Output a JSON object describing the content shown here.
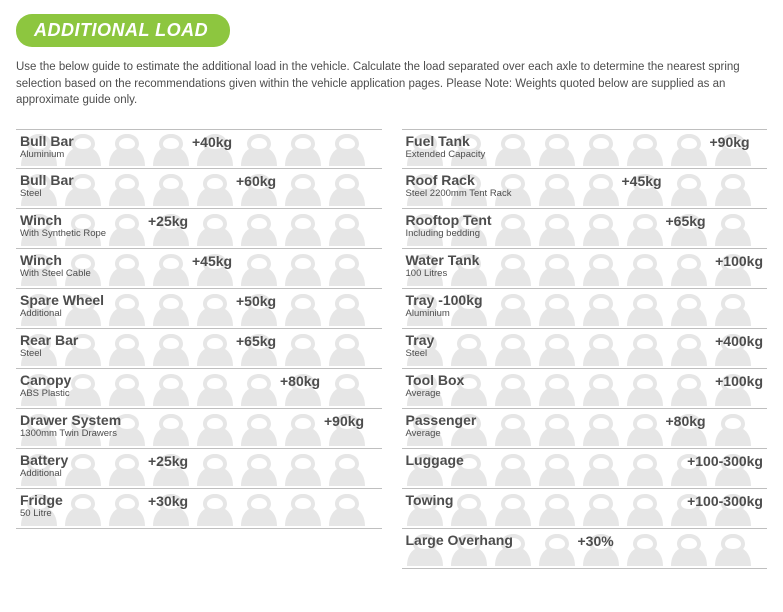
{
  "header": {
    "title": "ADDITIONAL LOAD"
  },
  "intro": "Use the below guide to estimate the additional load in the vehicle. Calculate the load separated over each axle to determine the nearest spring selection based on the recommendations given within the vehicle application pages. Please Note: Weights quoted below are supplied as an approximate guide only.",
  "icon_count_per_row": 8,
  "colors": {
    "accent": "#8dc63f",
    "weight_icon": "#e6e6e6",
    "text": "#4d4d4d",
    "rule": "#bfbfbf"
  },
  "left": [
    {
      "title": "Bull Bar",
      "sub": "Aluminium",
      "value": "+40kg",
      "value_pos": 4
    },
    {
      "title": "Bull Bar",
      "sub": "Steel",
      "value": "+60kg",
      "value_pos": 5
    },
    {
      "title": "Winch",
      "sub": "With Synthetic Rope",
      "value": "+25kg",
      "value_pos": 3
    },
    {
      "title": "Winch",
      "sub": "With Steel Cable",
      "value": "+45kg",
      "value_pos": 4
    },
    {
      "title": "Spare Wheel",
      "sub": "Additional",
      "value": "+50kg",
      "value_pos": 5
    },
    {
      "title": "Rear Bar",
      "sub": "Steel",
      "value": "+65kg",
      "value_pos": 5
    },
    {
      "title": "Canopy",
      "sub": "ABS Plastic",
      "value": "+80kg",
      "value_pos": 6
    },
    {
      "title": "Drawer System",
      "sub": "1300mm Twin Drawers",
      "value": "+90kg",
      "value_pos": 7
    },
    {
      "title": "Battery",
      "sub": "Additional",
      "value": "+25kg",
      "value_pos": 3
    },
    {
      "title": "Fridge",
      "sub": "50 Litre",
      "value": "+30kg",
      "value_pos": 3
    }
  ],
  "right": [
    {
      "title": "Fuel Tank",
      "sub": "Extended Capacity",
      "value": "+90kg",
      "value_pos": 7
    },
    {
      "title": "Roof Rack",
      "sub": "Steel 2200mm Tent Rack",
      "value": "+45kg",
      "value_pos": 5
    },
    {
      "title": "Rooftop Tent",
      "sub": "Including bedding",
      "value": "+65kg",
      "value_pos": 6
    },
    {
      "title": "Water Tank",
      "sub": "100 Litres",
      "value": "+100kg",
      "value_pos": 8
    },
    {
      "title": "Tray -100kg",
      "sub": "Aluminium",
      "value": "",
      "value_pos": 0
    },
    {
      "title": "Tray",
      "sub": "Steel",
      "value": "+400kg",
      "value_pos": 8
    },
    {
      "title": "Tool Box",
      "sub": "Average",
      "value": "+100kg",
      "value_pos": 8
    },
    {
      "title": "Passenger",
      "sub": "Average",
      "value": "+80kg",
      "value_pos": 6
    },
    {
      "title": "Luggage",
      "sub": "",
      "value": "+100-300kg",
      "value_pos": 8
    },
    {
      "title": "Towing",
      "sub": "",
      "value": "+100-300kg",
      "value_pos": 8
    },
    {
      "title": "Large Overhang",
      "sub": "",
      "value": "+30%",
      "value_pos": 4
    }
  ]
}
